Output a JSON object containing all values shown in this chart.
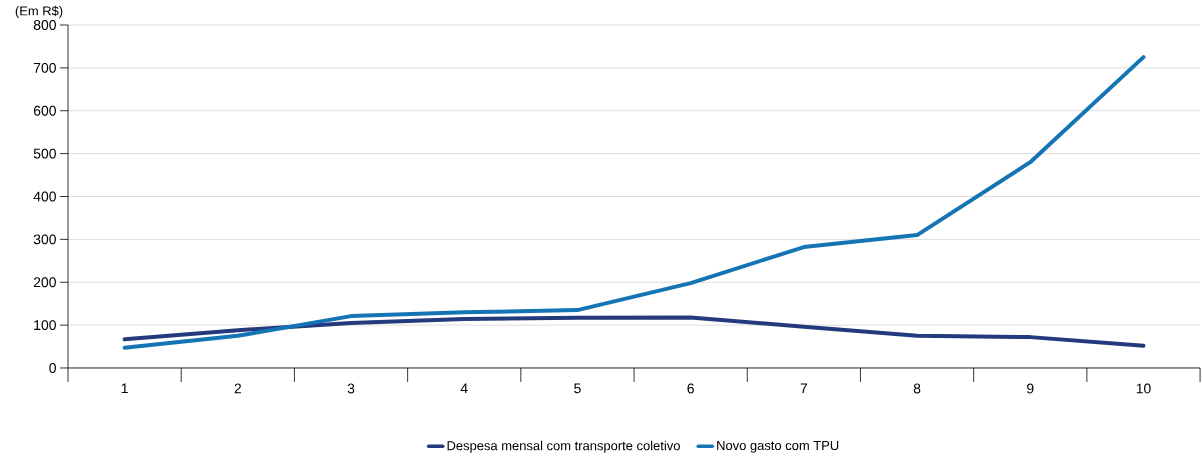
{
  "chart_data": {
    "type": "line",
    "ylabel": "(Em R$)",
    "categories": [
      "1",
      "2",
      "3",
      "4",
      "5",
      "6",
      "7",
      "8",
      "9",
      "10"
    ],
    "series": [
      {
        "name": "Despesa mensal com transporte coletivo",
        "color": "#233a7c",
        "values": [
          67,
          88,
          105,
          114,
          117,
          118,
          96,
          75,
          72,
          52
        ]
      },
      {
        "name": "Novo gasto com TPU",
        "color": "#1474b4",
        "values": [
          47,
          75,
          121,
          130,
          135,
          198,
          282,
          310,
          480,
          725
        ]
      }
    ],
    "ylim": [
      0,
      800
    ],
    "yticks": [
      0,
      100,
      200,
      300,
      400,
      500,
      600,
      700,
      800
    ],
    "grid": "y",
    "legend": "bottom",
    "marker": "none",
    "line_style": "solid"
  }
}
